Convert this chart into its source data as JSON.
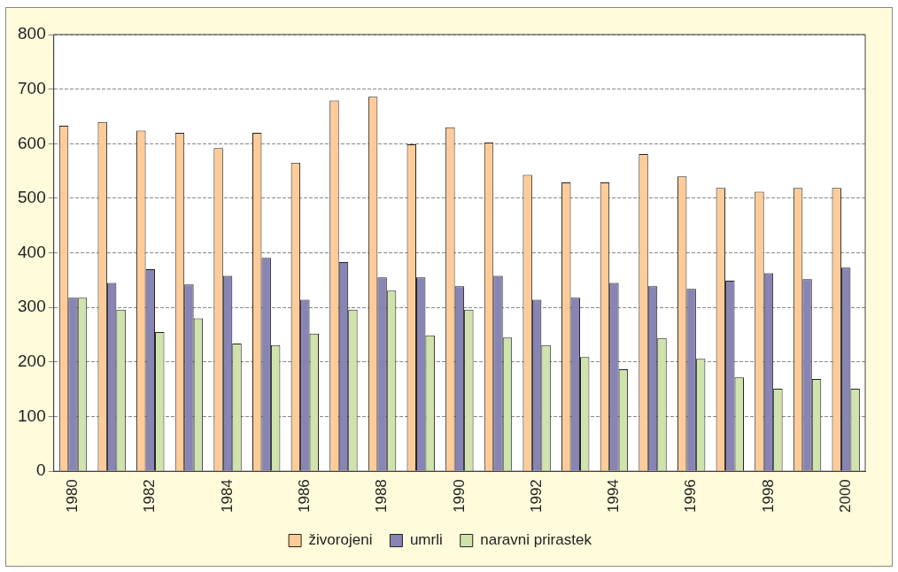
{
  "chart_data": {
    "type": "bar",
    "categories": [
      "1980",
      null,
      "1982",
      null,
      "1984",
      null,
      "1986",
      null,
      "1988",
      null,
      "1990",
      null,
      "1992",
      null,
      "1994",
      null,
      "1996",
      null,
      "1998",
      null,
      "2000"
    ],
    "series": [
      {
        "name": "živorojeni",
        "color": "#ffcc99",
        "values": [
          633,
          640,
          624,
          620,
          592,
          620,
          565,
          679,
          686,
          599,
          630,
          602,
          543,
          529,
          529,
          581,
          540,
          519,
          512,
          519,
          519
        ]
      },
      {
        "name": "umrli",
        "color": "#8884b4",
        "values": [
          318,
          345,
          370,
          342,
          358,
          391,
          314,
          383,
          355,
          355,
          339,
          358,
          314,
          318,
          345,
          339,
          334,
          349,
          363,
          352,
          373
        ]
      },
      {
        "name": "naravni prirastek",
        "color": "#d0e3ad",
        "values": [
          318,
          296,
          255,
          280,
          234,
          231,
          252,
          296,
          331,
          249,
          296,
          245,
          231,
          209,
          187,
          244,
          206,
          172,
          151,
          169,
          151
        ]
      }
    ],
    "ylim": [
      0,
      800
    ],
    "yticks": [
      0,
      100,
      200,
      300,
      400,
      500,
      600,
      700,
      800
    ],
    "grid": "y",
    "legend": "bottom"
  }
}
